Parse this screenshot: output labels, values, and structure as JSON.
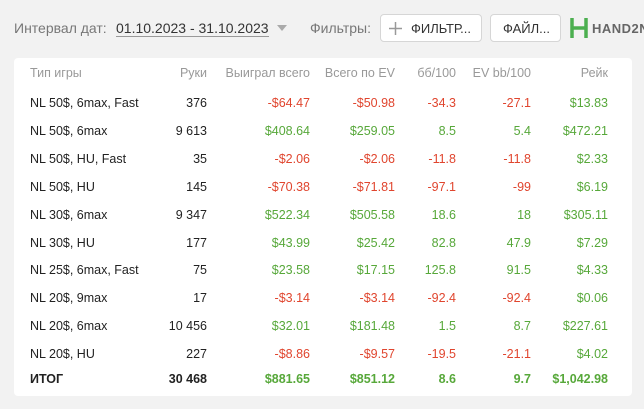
{
  "toolbar": {
    "date_label": "Интервал дат:",
    "date_range": "01.10.2023 - 31.10.2023",
    "filters_label": "Фильтры:",
    "filter_button": "ФИЛЬТР...",
    "file_button": "ФАЙЛ...",
    "logo": "HAND2N"
  },
  "table": {
    "columns": [
      "Тип игры",
      "Руки",
      "Выиграл всего",
      "Всего по EV",
      "бб/100",
      "EV bb/100",
      "Рейк"
    ],
    "rows": [
      [
        "NL 50$, 6max, Fast",
        "376",
        "-$64.47",
        "-$50.98",
        "-34.3",
        "-27.1",
        "$13.83"
      ],
      [
        "NL 50$, 6max",
        "9 613",
        "$408.64",
        "$259.05",
        "8.5",
        "5.4",
        "$472.21"
      ],
      [
        "NL 50$, HU, Fast",
        "35",
        "-$2.06",
        "-$2.06",
        "-11.8",
        "-11.8",
        "$2.33"
      ],
      [
        "NL 50$, HU",
        "145",
        "-$70.38",
        "-$71.81",
        "-97.1",
        "-99",
        "$6.19"
      ],
      [
        "NL 30$, 6max",
        "9 347",
        "$522.34",
        "$505.58",
        "18.6",
        "18",
        "$305.11"
      ],
      [
        "NL 30$, HU",
        "177",
        "$43.99",
        "$25.42",
        "82.8",
        "47.9",
        "$7.29"
      ],
      [
        "NL 25$, 6max, Fast",
        "75",
        "$23.58",
        "$17.15",
        "125.8",
        "91.5",
        "$4.33"
      ],
      [
        "NL 20$, 9max",
        "17",
        "-$3.14",
        "-$3.14",
        "-92.4",
        "-92.4",
        "$0.06"
      ],
      [
        "NL 20$, 6max",
        "10 456",
        "$32.01",
        "$181.48",
        "1.5",
        "8.7",
        "$227.61"
      ],
      [
        "NL 20$, HU",
        "227",
        "-$8.86",
        "-$9.57",
        "-19.5",
        "-21.1",
        "$4.02"
      ]
    ],
    "total": [
      "ИТОГ",
      "30 468",
      "$881.65",
      "$851.12",
      "8.6",
      "9.7",
      "$1,042.98"
    ]
  }
}
